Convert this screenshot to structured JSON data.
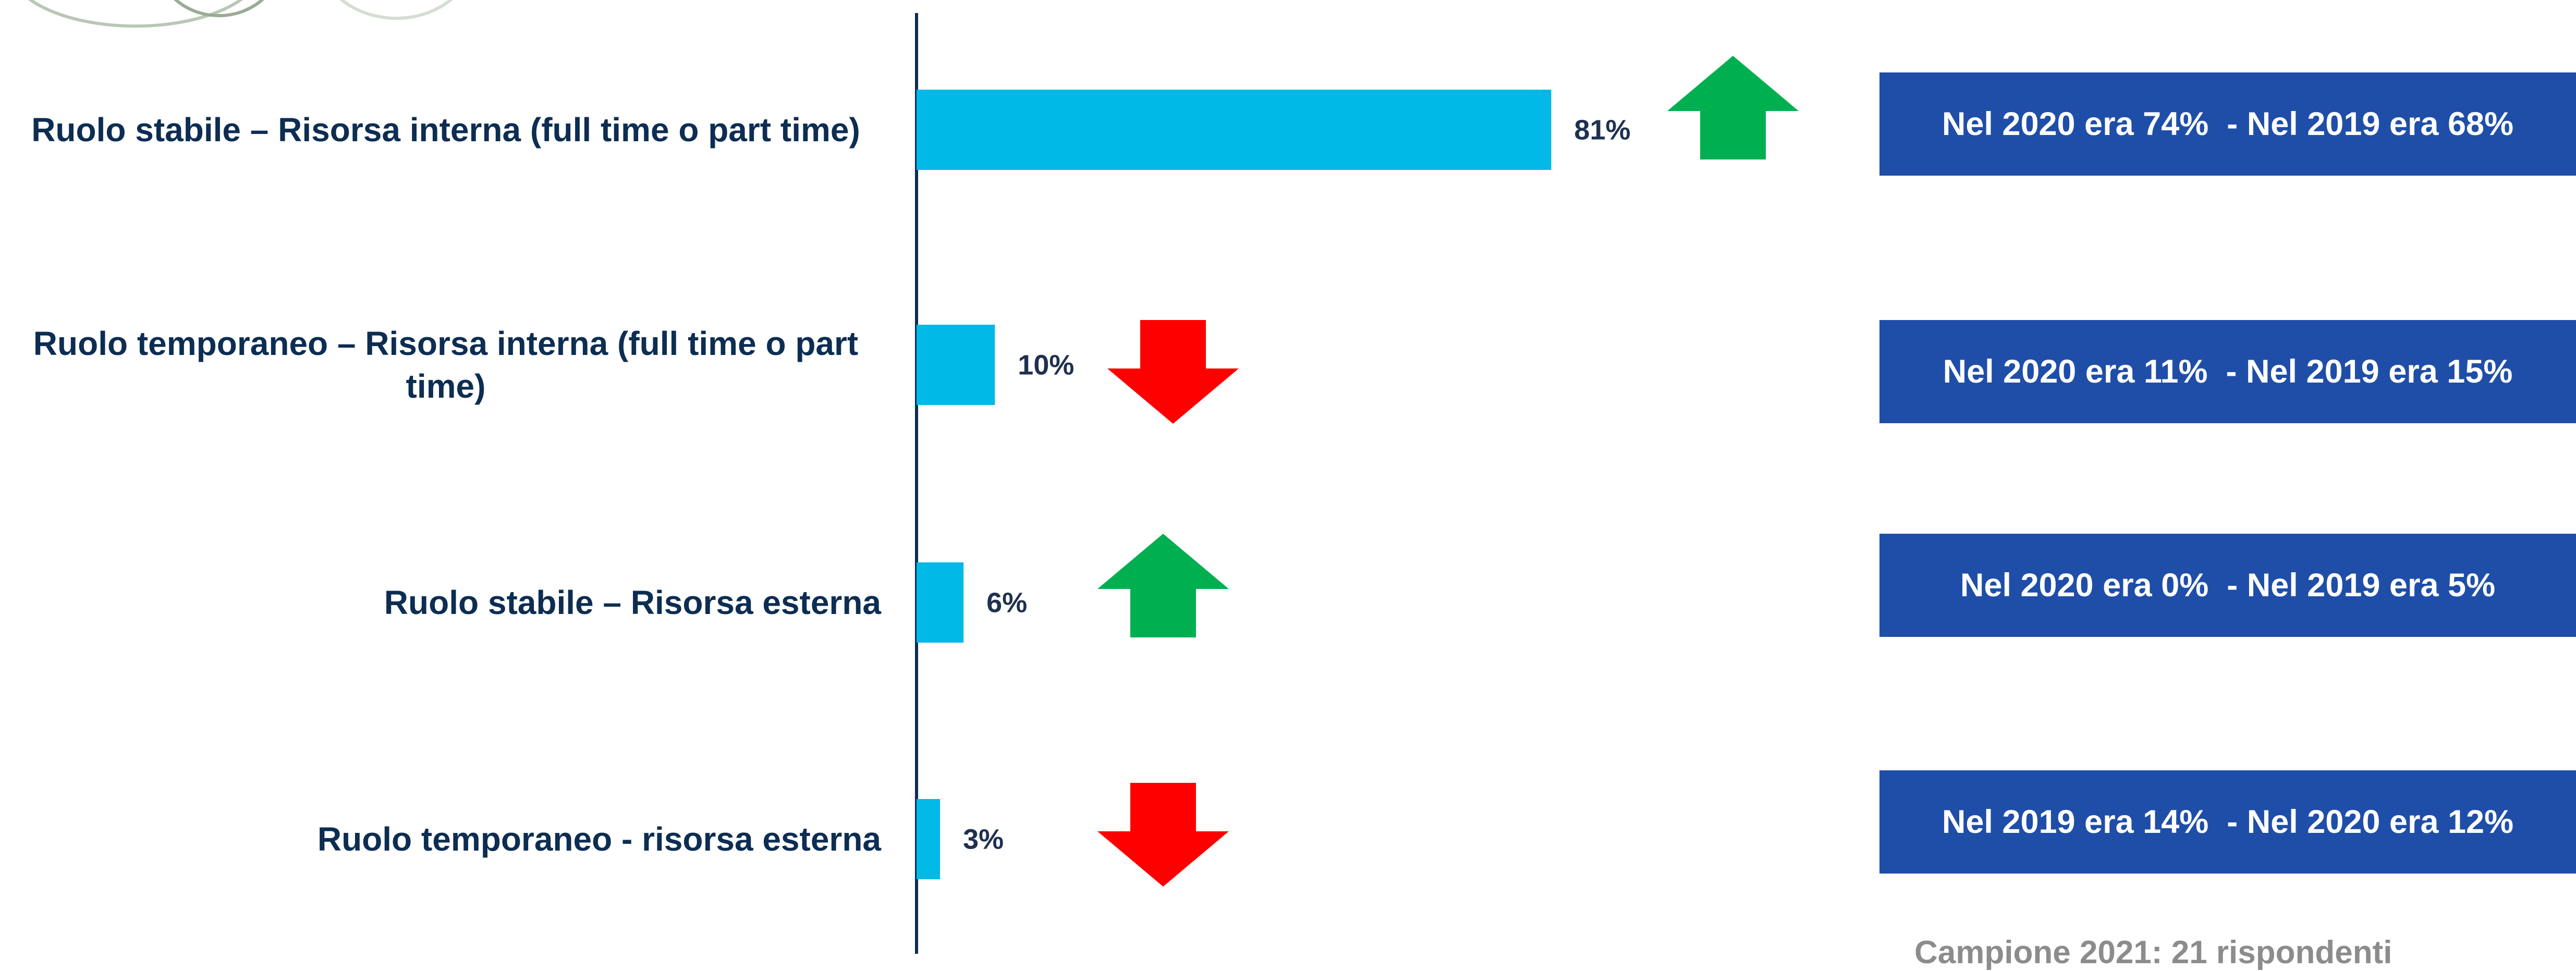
{
  "chart_data": {
    "type": "hbar",
    "categories": [
      "Ruolo stabile – Risorsa interna (full time o part time)",
      "Ruolo temporaneo – Risorsa interna (full time o part time)",
      "Ruolo stabile – Risorsa esterna",
      "Ruolo temporaneo  - risorsa esterna"
    ],
    "values": [
      81,
      10,
      6,
      3
    ],
    "value_labels": [
      "81%",
      "10%",
      "6%",
      "3%"
    ],
    "color": "#00b9e6",
    "xlim": [
      0,
      100
    ],
    "annotations": [
      "Nel 2020 era 74%  - Nel 2019 era 68%",
      "Nel 2020 era 11%  - Nel 2019 era 15%",
      "Nel 2020 era 0%  - Nel 2019 era 5%",
      "Nel 2019 era 14%  - Nel 2020 era 12%"
    ],
    "footnote": "Campione 2021: 21 rispondenti"
  }
}
